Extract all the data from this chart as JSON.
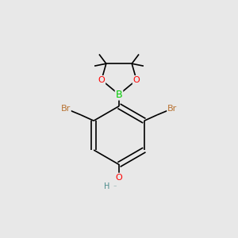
{
  "bg_color": "#e8e8e8",
  "bond_color": "#000000",
  "bond_width": 1.2,
  "B_color": "#00cc00",
  "O_color": "#ff0000",
  "Br_color": "#b87333",
  "H_color": "#4a8a8a",
  "C_color": "#000000",
  "font_size_atom": 8,
  "fig_bg": "#e8e8e8",
  "xlim": [
    0,
    10
  ],
  "ylim": [
    0,
    10
  ]
}
